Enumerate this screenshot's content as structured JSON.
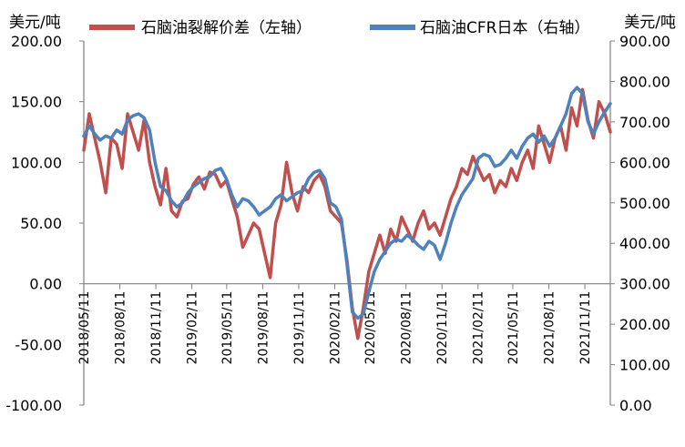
{
  "chart_data": {
    "type": "line",
    "left_unit": "美元/吨",
    "right_unit": "美元/吨",
    "left_axis": {
      "min": -100,
      "max": 200,
      "ticks": [
        "-100.00",
        "-50.00",
        "0.00",
        "50.00",
        "100.00",
        "150.00",
        "200.00"
      ]
    },
    "right_axis": {
      "min": 0,
      "max": 900,
      "ticks": [
        "0.00",
        "100.00",
        "200.00",
        "300.00",
        "400.00",
        "500.00",
        "600.00",
        "700.00",
        "800.00",
        "900.00"
      ]
    },
    "x_range": [
      "2018-05-11",
      "2022-01-15"
    ],
    "x_ticks": [
      "2018/05/11",
      "2018/08/11",
      "2018/11/11",
      "2019/02/11",
      "2019/05/11",
      "2019/08/11",
      "2019/11/11",
      "2020/02/11",
      "2020/05/11",
      "2020/08/11",
      "2020/11/11",
      "2021/02/11",
      "2021/05/11",
      "2021/08/11",
      "2021/11/11"
    ],
    "legend_placement": "top",
    "series": [
      {
        "name": "石脑油裂解价差（左轴）",
        "axis": "left",
        "color": "#C0504D",
        "points": [
          [
            "2018-05-11",
            110
          ],
          [
            "2018-05-25",
            140
          ],
          [
            "2018-06-08",
            120
          ],
          [
            "2018-06-22",
            100
          ],
          [
            "2018-07-06",
            75
          ],
          [
            "2018-07-20",
            120
          ],
          [
            "2018-08-03",
            115
          ],
          [
            "2018-08-17",
            95
          ],
          [
            "2018-08-31",
            140
          ],
          [
            "2018-09-14",
            125
          ],
          [
            "2018-09-28",
            110
          ],
          [
            "2018-10-12",
            135
          ],
          [
            "2018-10-26",
            100
          ],
          [
            "2018-11-09",
            80
          ],
          [
            "2018-11-23",
            65
          ],
          [
            "2018-12-07",
            95
          ],
          [
            "2018-12-21",
            60
          ],
          [
            "2019-01-04",
            55
          ],
          [
            "2019-01-18",
            68
          ],
          [
            "2019-02-01",
            70
          ],
          [
            "2019-02-15",
            82
          ],
          [
            "2019-03-01",
            88
          ],
          [
            "2019-03-15",
            78
          ],
          [
            "2019-03-29",
            92
          ],
          [
            "2019-04-12",
            90
          ],
          [
            "2019-04-26",
            80
          ],
          [
            "2019-05-10",
            85
          ],
          [
            "2019-05-24",
            70
          ],
          [
            "2019-06-07",
            55
          ],
          [
            "2019-06-21",
            30
          ],
          [
            "2019-07-05",
            40
          ],
          [
            "2019-07-19",
            50
          ],
          [
            "2019-08-02",
            45
          ],
          [
            "2019-08-16",
            25
          ],
          [
            "2019-08-30",
            5
          ],
          [
            "2019-09-13",
            50
          ],
          [
            "2019-09-27",
            65
          ],
          [
            "2019-10-11",
            100
          ],
          [
            "2019-10-25",
            75
          ],
          [
            "2019-11-08",
            60
          ],
          [
            "2019-11-22",
            80
          ],
          [
            "2019-12-06",
            75
          ],
          [
            "2019-12-20",
            85
          ],
          [
            "2020-01-03",
            90
          ],
          [
            "2020-01-17",
            80
          ],
          [
            "2020-01-31",
            60
          ],
          [
            "2020-02-14",
            55
          ],
          [
            "2020-02-28",
            50
          ],
          [
            "2020-03-13",
            20
          ],
          [
            "2020-03-27",
            -20
          ],
          [
            "2020-04-10",
            -45
          ],
          [
            "2020-04-24",
            -20
          ],
          [
            "2020-05-08",
            10
          ],
          [
            "2020-05-22",
            25
          ],
          [
            "2020-06-05",
            40
          ],
          [
            "2020-06-19",
            25
          ],
          [
            "2020-07-03",
            45
          ],
          [
            "2020-07-17",
            35
          ],
          [
            "2020-07-31",
            55
          ],
          [
            "2020-08-14",
            45
          ],
          [
            "2020-08-28",
            35
          ],
          [
            "2020-09-11",
            50
          ],
          [
            "2020-09-25",
            60
          ],
          [
            "2020-10-09",
            45
          ],
          [
            "2020-10-23",
            50
          ],
          [
            "2020-11-06",
            40
          ],
          [
            "2020-11-20",
            55
          ],
          [
            "2020-12-04",
            70
          ],
          [
            "2020-12-18",
            80
          ],
          [
            "2021-01-01",
            95
          ],
          [
            "2021-01-15",
            90
          ],
          [
            "2021-01-29",
            105
          ],
          [
            "2021-02-12",
            95
          ],
          [
            "2021-02-26",
            85
          ],
          [
            "2021-03-12",
            90
          ],
          [
            "2021-03-26",
            75
          ],
          [
            "2021-04-09",
            85
          ],
          [
            "2021-04-23",
            80
          ],
          [
            "2021-05-07",
            95
          ],
          [
            "2021-05-21",
            85
          ],
          [
            "2021-06-04",
            100
          ],
          [
            "2021-06-18",
            110
          ],
          [
            "2021-07-02",
            95
          ],
          [
            "2021-07-16",
            130
          ],
          [
            "2021-07-30",
            115
          ],
          [
            "2021-08-13",
            100
          ],
          [
            "2021-08-27",
            120
          ],
          [
            "2021-09-10",
            130
          ],
          [
            "2021-09-24",
            110
          ],
          [
            "2021-10-08",
            145
          ],
          [
            "2021-10-22",
            130
          ],
          [
            "2021-11-05",
            160
          ],
          [
            "2021-11-19",
            135
          ],
          [
            "2021-12-03",
            120
          ],
          [
            "2021-12-17",
            150
          ],
          [
            "2022-01-01",
            140
          ],
          [
            "2022-01-15",
            125
          ]
        ]
      },
      {
        "name": "石脑油CFR日本（右轴）",
        "axis": "right",
        "color": "#4F81BD",
        "points": [
          [
            "2018-05-11",
            665
          ],
          [
            "2018-05-25",
            690
          ],
          [
            "2018-06-08",
            670
          ],
          [
            "2018-06-22",
            655
          ],
          [
            "2018-07-06",
            665
          ],
          [
            "2018-07-20",
            660
          ],
          [
            "2018-08-03",
            680
          ],
          [
            "2018-08-17",
            670
          ],
          [
            "2018-08-31",
            705
          ],
          [
            "2018-09-14",
            715
          ],
          [
            "2018-09-28",
            720
          ],
          [
            "2018-10-12",
            710
          ],
          [
            "2018-10-26",
            680
          ],
          [
            "2018-11-09",
            600
          ],
          [
            "2018-11-23",
            540
          ],
          [
            "2018-12-07",
            530
          ],
          [
            "2018-12-21",
            505
          ],
          [
            "2019-01-04",
            490
          ],
          [
            "2019-01-18",
            500
          ],
          [
            "2019-02-01",
            525
          ],
          [
            "2019-02-15",
            540
          ],
          [
            "2019-03-01",
            550
          ],
          [
            "2019-03-15",
            560
          ],
          [
            "2019-03-29",
            565
          ],
          [
            "2019-04-12",
            580
          ],
          [
            "2019-04-26",
            585
          ],
          [
            "2019-05-10",
            560
          ],
          [
            "2019-05-24",
            520
          ],
          [
            "2019-06-07",
            490
          ],
          [
            "2019-06-21",
            510
          ],
          [
            "2019-07-05",
            505
          ],
          [
            "2019-07-19",
            490
          ],
          [
            "2019-08-02",
            470
          ],
          [
            "2019-08-16",
            480
          ],
          [
            "2019-08-30",
            490
          ],
          [
            "2019-09-13",
            510
          ],
          [
            "2019-09-27",
            520
          ],
          [
            "2019-10-11",
            505
          ],
          [
            "2019-10-25",
            515
          ],
          [
            "2019-11-08",
            525
          ],
          [
            "2019-11-22",
            530
          ],
          [
            "2019-12-06",
            560
          ],
          [
            "2019-12-20",
            575
          ],
          [
            "2020-01-03",
            580
          ],
          [
            "2020-01-17",
            560
          ],
          [
            "2020-01-31",
            500
          ],
          [
            "2020-02-14",
            490
          ],
          [
            "2020-02-28",
            460
          ],
          [
            "2020-03-13",
            350
          ],
          [
            "2020-03-27",
            230
          ],
          [
            "2020-04-10",
            215
          ],
          [
            "2020-04-24",
            225
          ],
          [
            "2020-05-08",
            280
          ],
          [
            "2020-05-22",
            330
          ],
          [
            "2020-06-05",
            360
          ],
          [
            "2020-06-19",
            380
          ],
          [
            "2020-07-03",
            400
          ],
          [
            "2020-07-17",
            410
          ],
          [
            "2020-07-31",
            405
          ],
          [
            "2020-08-14",
            420
          ],
          [
            "2020-08-28",
            410
          ],
          [
            "2020-09-11",
            395
          ],
          [
            "2020-09-25",
            385
          ],
          [
            "2020-10-09",
            405
          ],
          [
            "2020-10-23",
            395
          ],
          [
            "2020-11-06",
            360
          ],
          [
            "2020-11-20",
            400
          ],
          [
            "2020-12-04",
            450
          ],
          [
            "2020-12-18",
            490
          ],
          [
            "2021-01-01",
            520
          ],
          [
            "2021-01-15",
            540
          ],
          [
            "2021-01-29",
            560
          ],
          [
            "2021-02-12",
            610
          ],
          [
            "2021-02-26",
            620
          ],
          [
            "2021-03-12",
            615
          ],
          [
            "2021-03-26",
            590
          ],
          [
            "2021-04-09",
            595
          ],
          [
            "2021-04-23",
            610
          ],
          [
            "2021-05-07",
            630
          ],
          [
            "2021-05-21",
            610
          ],
          [
            "2021-06-04",
            640
          ],
          [
            "2021-06-18",
            660
          ],
          [
            "2021-07-02",
            670
          ],
          [
            "2021-07-16",
            650
          ],
          [
            "2021-07-30",
            665
          ],
          [
            "2021-08-13",
            640
          ],
          [
            "2021-08-27",
            660
          ],
          [
            "2021-09-10",
            690
          ],
          [
            "2021-09-24",
            720
          ],
          [
            "2021-10-08",
            770
          ],
          [
            "2021-10-22",
            785
          ],
          [
            "2021-11-05",
            770
          ],
          [
            "2021-11-19",
            700
          ],
          [
            "2021-12-03",
            670
          ],
          [
            "2021-12-17",
            700
          ],
          [
            "2022-01-01",
            725
          ],
          [
            "2022-01-15",
            745
          ]
        ]
      }
    ]
  }
}
